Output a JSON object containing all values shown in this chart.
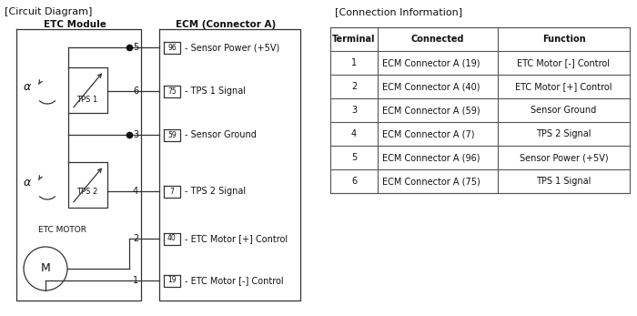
{
  "title_left": "[Circuit Diagram]",
  "title_right": "[Connection Information]",
  "left_header": "ETC Module",
  "right_header": "ECM (Connector A)",
  "table_headers": [
    "Terminal",
    "Connected",
    "Function"
  ],
  "table_rows": [
    [
      "1",
      "ECM Connector A (19)",
      "ETC Motor [-] Control"
    ],
    [
      "2",
      "ECM Connector A (40)",
      "ETC Motor [+] Control"
    ],
    [
      "3",
      "ECM Connector A (59)",
      "Sensor Ground"
    ],
    [
      "4",
      "ECM Connector A (7)",
      "TPS 2 Signal"
    ],
    [
      "5",
      "ECM Connector A (96)",
      "Sensor Power (+5V)"
    ],
    [
      "6",
      "ECM Connector A (75)",
      "TPS 1 Signal"
    ]
  ],
  "ecm_pins": [
    {
      "pin": "96",
      "label": "Sensor Power (+5V)",
      "terminal": 5
    },
    {
      "pin": "75",
      "label": "TPS 1 Signal",
      "terminal": 6
    },
    {
      "pin": "59",
      "label": "Sensor Ground",
      "terminal": 3
    },
    {
      "pin": "7",
      "label": "TPS 2 Signal",
      "terminal": 4
    },
    {
      "pin": "40",
      "label": "ETC Motor [+] Control",
      "terminal": 2
    },
    {
      "pin": "19",
      "label": "ETC Motor [-] Control",
      "terminal": 1
    }
  ],
  "bg_color": "#ffffff",
  "line_color": "#333333"
}
